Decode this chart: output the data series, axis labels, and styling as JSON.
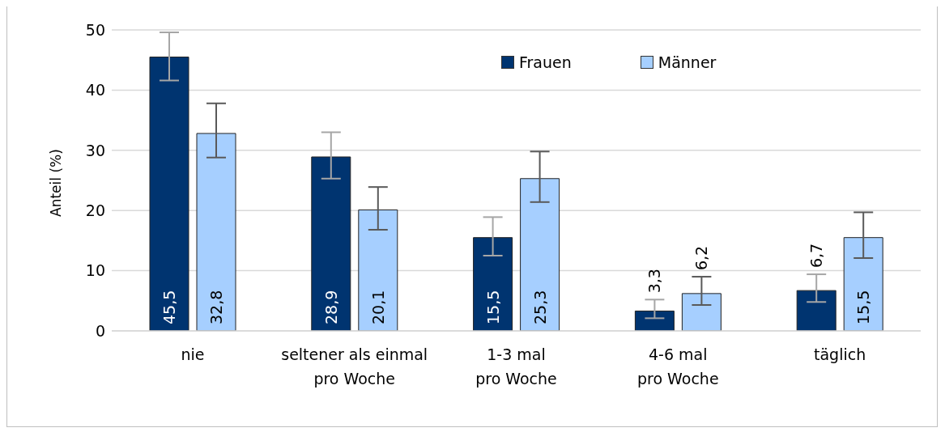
{
  "chart_data": {
    "type": "bar",
    "ylabel": "Anteil (%)",
    "categories": [
      "nie",
      "seltener als einmal\npro Woche",
      "1-3 mal\npro Woche",
      "4-6 mal\npro Woche",
      "täglich"
    ],
    "series": [
      {
        "name": "Frauen",
        "color": "#003470",
        "values": [
          45.5,
          28.9,
          15.5,
          3.3,
          6.7
        ],
        "value_labels": [
          "45,5",
          "28,9",
          "15,5",
          "3,3",
          "6,7"
        ],
        "errors": [
          [
            41.6,
            49.6
          ],
          [
            25.3,
            33.0
          ],
          [
            12.5,
            18.9
          ],
          [
            2.1,
            5.2
          ],
          [
            4.8,
            9.4
          ]
        ]
      },
      {
        "name": "Männer",
        "color": "#a6cfff",
        "values": [
          32.8,
          20.1,
          25.3,
          6.2,
          15.5
        ],
        "value_labels": [
          "32,8",
          "20,1",
          "25,3",
          "6,2",
          "15,5"
        ],
        "errors": [
          [
            28.8,
            37.8
          ],
          [
            16.8,
            23.9
          ],
          [
            21.4,
            29.8
          ],
          [
            4.3,
            9.0
          ],
          [
            12.1,
            19.7
          ]
        ]
      }
    ],
    "ylim": [
      0,
      50
    ],
    "yticks": [
      0,
      10,
      20,
      30,
      40,
      50
    ],
    "grid": "y",
    "legend": "top"
  }
}
